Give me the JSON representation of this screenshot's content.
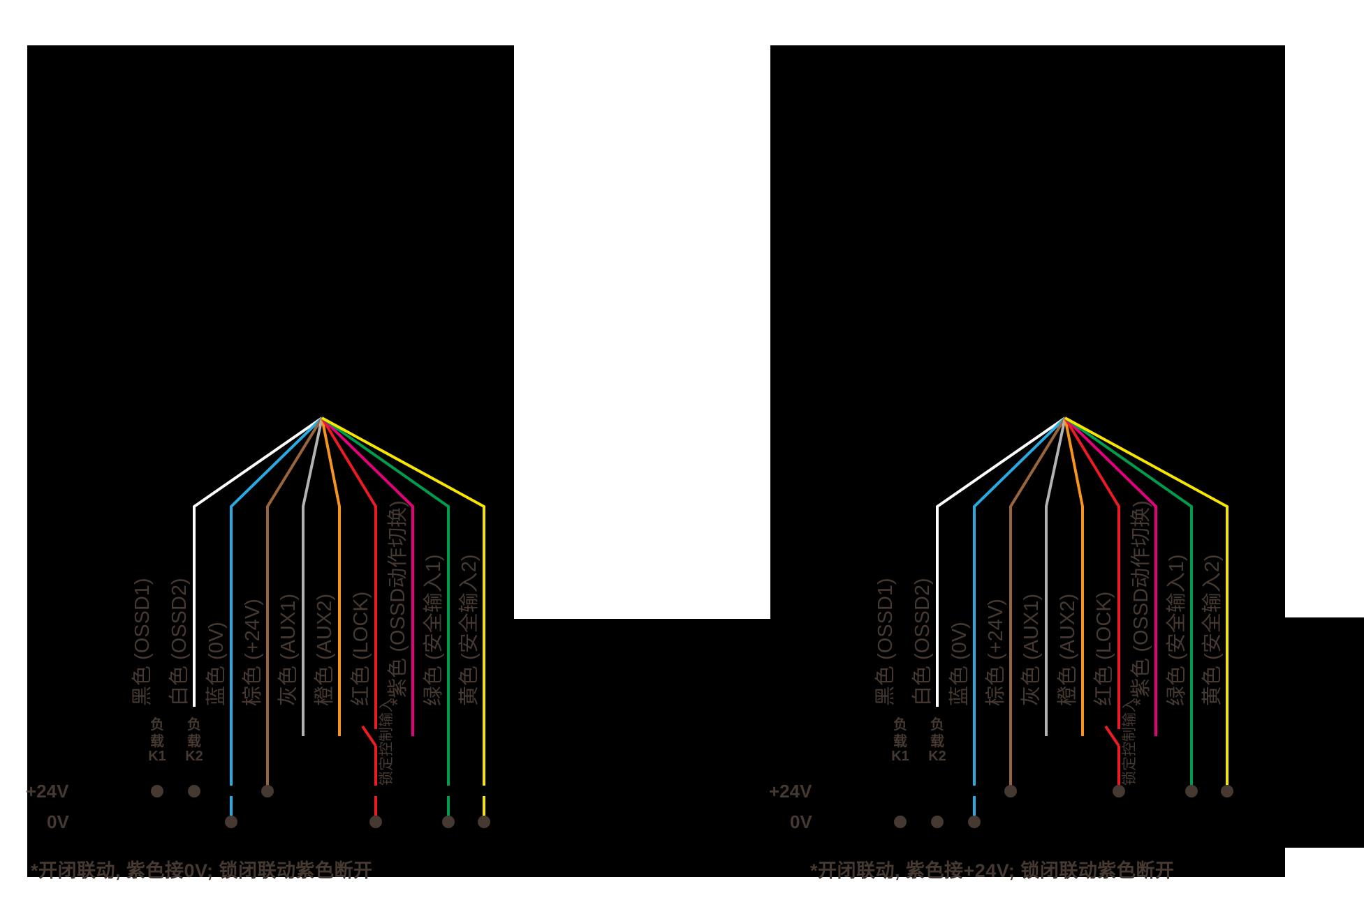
{
  "page": {
    "background": "#ffffff",
    "panel_background": "#000000",
    "ink": "#453931"
  },
  "panels": [
    {
      "id": "left",
      "power_rails": {
        "v24": "+24V",
        "v0": "0V"
      },
      "note": "*开闭联动, 紫色接0V; 锁闭联动紫色断开",
      "switch_label": "锁定控制输入",
      "load_terminal": "+24v",
      "wires": [
        {
          "name": "black",
          "label": "黑色 (OSSD1)",
          "color": null,
          "terminal": "load",
          "load": [
            "负",
            "载",
            "K1"
          ]
        },
        {
          "name": "white",
          "label": "白色 (OSSD2)",
          "color": "#ffffff",
          "terminal": "load",
          "load": [
            "负",
            "载",
            "K2"
          ]
        },
        {
          "name": "blue",
          "label": "蓝色 (0V)",
          "color": "#29abe2",
          "terminal": "0v"
        },
        {
          "name": "brown",
          "label": "棕色 (+24V)",
          "color": "#99653c",
          "terminal": "+24v"
        },
        {
          "name": "gray",
          "label": "灰色 (AUX1)",
          "color": "#b3b3b3",
          "terminal": "open"
        },
        {
          "name": "orange",
          "label": "橙色 (AUX2)",
          "color": "#f7941d",
          "terminal": "open"
        },
        {
          "name": "red",
          "label": "红色 (LOCK)",
          "color": "#ed1c24",
          "terminal": "0v",
          "switch": true
        },
        {
          "name": "purple",
          "label": "*紫色 (OSSD动作切换)",
          "color": "#e6007e",
          "terminal": "open"
        },
        {
          "name": "green",
          "label": "绿色 (安全输入1)",
          "color": "#009d4c",
          "terminal": "0v"
        },
        {
          "name": "yellow",
          "label": "黄色 (安全输入2)",
          "color": "#f7e700",
          "terminal": "0v"
        }
      ]
    },
    {
      "id": "right",
      "power_rails": {
        "v24": "+24V",
        "v0": "0V"
      },
      "note": "*开闭联动, 紫色接+24V; 锁闭联动紫色断开",
      "switch_label": "锁定控制输入",
      "load_terminal": "0v",
      "wires": [
        {
          "name": "black",
          "label": "黑色 (OSSD1)",
          "color": null,
          "terminal": "load",
          "load": [
            "负",
            "载",
            "K1"
          ]
        },
        {
          "name": "white",
          "label": "白色 (OSSD2)",
          "color": "#ffffff",
          "terminal": "load",
          "load": [
            "负",
            "载",
            "K2"
          ]
        },
        {
          "name": "blue",
          "label": "蓝色 (0V)",
          "color": "#29abe2",
          "terminal": "0v"
        },
        {
          "name": "brown",
          "label": "棕色 (+24V)",
          "color": "#99653c",
          "terminal": "+24v"
        },
        {
          "name": "gray",
          "label": "灰色 (AUX1)",
          "color": "#b3b3b3",
          "terminal": "open"
        },
        {
          "name": "orange",
          "label": "橙色 (AUX2)",
          "color": "#f7941d",
          "terminal": "open"
        },
        {
          "name": "red",
          "label": "红色 (LOCK)",
          "color": "#ed1c24",
          "terminal": "+24v",
          "switch": true
        },
        {
          "name": "purple",
          "label": "*紫色 (OSSD动作切换)",
          "color": "#e6007e",
          "terminal": "open"
        },
        {
          "name": "green",
          "label": "绿色 (安全输入1)",
          "color": "#009d4c",
          "terminal": "+24v"
        },
        {
          "name": "yellow",
          "label": "黄色 (安全输入2)",
          "color": "#f7e700",
          "terminal": "+24v"
        }
      ]
    }
  ]
}
